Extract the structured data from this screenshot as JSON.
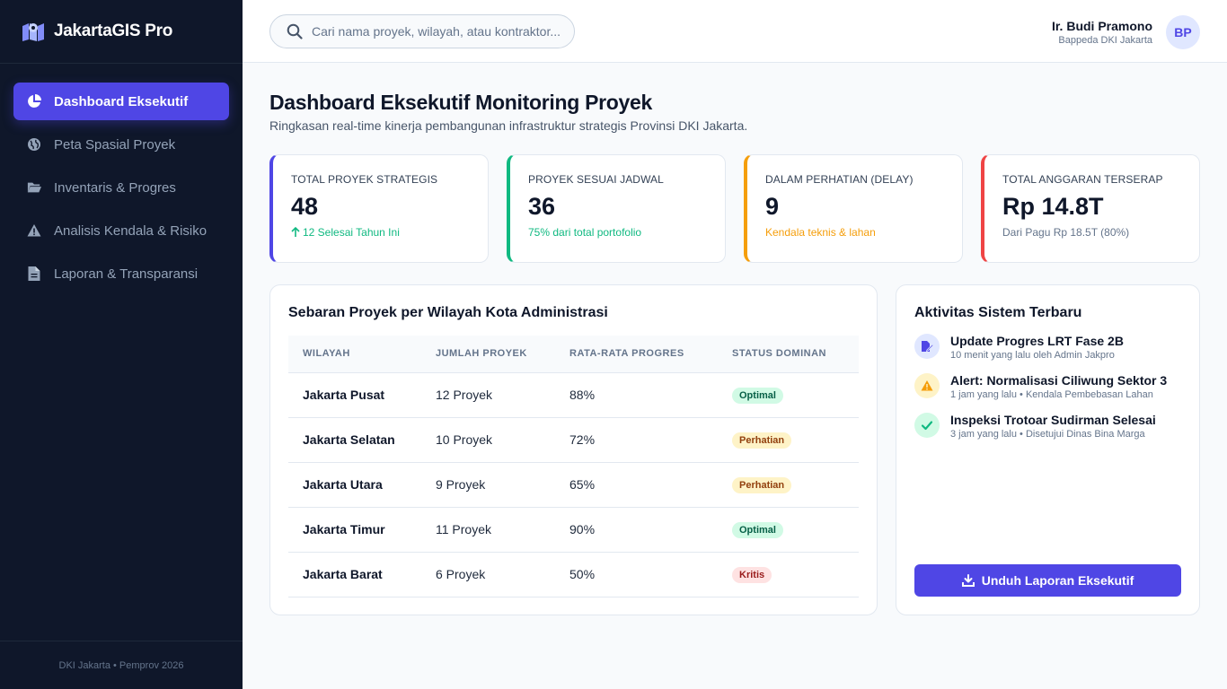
{
  "brand": {
    "name": "JakartaGIS Pro",
    "icon": "map-icon"
  },
  "nav": [
    {
      "label": "Dashboard Eksekutif",
      "icon": "pie-chart-icon",
      "active": true
    },
    {
      "label": "Peta Spasial Proyek",
      "icon": "globe-icon",
      "active": false
    },
    {
      "label": "Inventaris & Progres",
      "icon": "folder-icon",
      "active": false
    },
    {
      "label": "Analisis Kendala & Risiko",
      "icon": "warning-icon",
      "active": false
    },
    {
      "label": "Laporan & Transparansi",
      "icon": "file-icon",
      "active": false
    }
  ],
  "sidebar_footer": "DKI Jakarta • Pemprov 2026",
  "search": {
    "placeholder": "Cari nama proyek, wilayah, atau kontraktor..."
  },
  "user": {
    "name": "Ir. Budi Pramono",
    "role": "Bappeda DKI Jakarta",
    "initials": "BP"
  },
  "page": {
    "title": "Dashboard Eksekutif Monitoring Proyek",
    "subtitle": "Ringkasan real-time kinerja pembangunan infrastruktur strategis Provinsi DKI Jakarta."
  },
  "kpis": [
    {
      "label": "Total Proyek Strategis",
      "value": "48",
      "note": "12 Selesai Tahun Ini",
      "accent": "#4f46e5",
      "note_color": "#10b981"
    },
    {
      "label": "Proyek Sesuai Jadwal",
      "value": "36",
      "note": "75% dari total portofolio",
      "accent": "#10b981",
      "note_color": "#10b981"
    },
    {
      "label": "Dalam Perhatian (Delay)",
      "value": "9",
      "note": "Kendala teknis & lahan",
      "accent": "#f59e0b",
      "note_color": "#f59e0b"
    },
    {
      "label": "Total Anggaran Terserap",
      "value": "Rp 14.8T",
      "note": "Dari Pagu Rp 18.5T (80%)",
      "accent": "#ef4444",
      "note_color": "#64748b"
    }
  ],
  "regions_table": {
    "title": "Sebaran Proyek per Wilayah Kota Administrasi",
    "columns": [
      "WILAYAH",
      "JUMLAH PROYEK",
      "RATA-RATA PROGRES",
      "STATUS DOMINAN"
    ],
    "rows": [
      {
        "region": "Jakarta Pusat",
        "count": "12 Proyek",
        "progress": "88%",
        "status": "Optimal"
      },
      {
        "region": "Jakarta Selatan",
        "count": "10 Proyek",
        "progress": "72%",
        "status": "Perhatian"
      },
      {
        "region": "Jakarta Utara",
        "count": "9 Proyek",
        "progress": "65%",
        "status": "Perhatian"
      },
      {
        "region": "Jakarta Timur",
        "count": "11 Proyek",
        "progress": "90%",
        "status": "Optimal"
      },
      {
        "region": "Jakarta Barat",
        "count": "6 Proyek",
        "progress": "50%",
        "status": "Kritis"
      }
    ],
    "status_colors": {
      "Optimal": {
        "bg": "#d1fae5",
        "fg": "#065f46"
      },
      "Perhatian": {
        "bg": "#fef3c7",
        "fg": "#92400e"
      },
      "Kritis": {
        "bg": "#fee2e2",
        "fg": "#991b1b"
      }
    }
  },
  "activity": {
    "title": "Aktivitas Sistem Terbaru",
    "items": [
      {
        "title": "Update Progres LRT Fase 2B",
        "meta": "10 menit yang lalu oleh Admin Jakpro",
        "icon": "edit-icon",
        "bg": "#e0e7ff",
        "fg": "#4f46e5"
      },
      {
        "title": "Alert: Normalisasi Ciliwung Sektor 3",
        "meta": "1 jam yang lalu • Kendala Pembebasan Lahan",
        "icon": "alert-icon",
        "bg": "#fef3c7",
        "fg": "#f59e0b"
      },
      {
        "title": "Inspeksi Trotoar Sudirman Selesai",
        "meta": "3 jam yang lalu • Disetujui Dinas Bina Marga",
        "icon": "check-icon",
        "bg": "#d1fae5",
        "fg": "#10b981"
      }
    ],
    "button": "Unduh Laporan Eksekutif"
  }
}
